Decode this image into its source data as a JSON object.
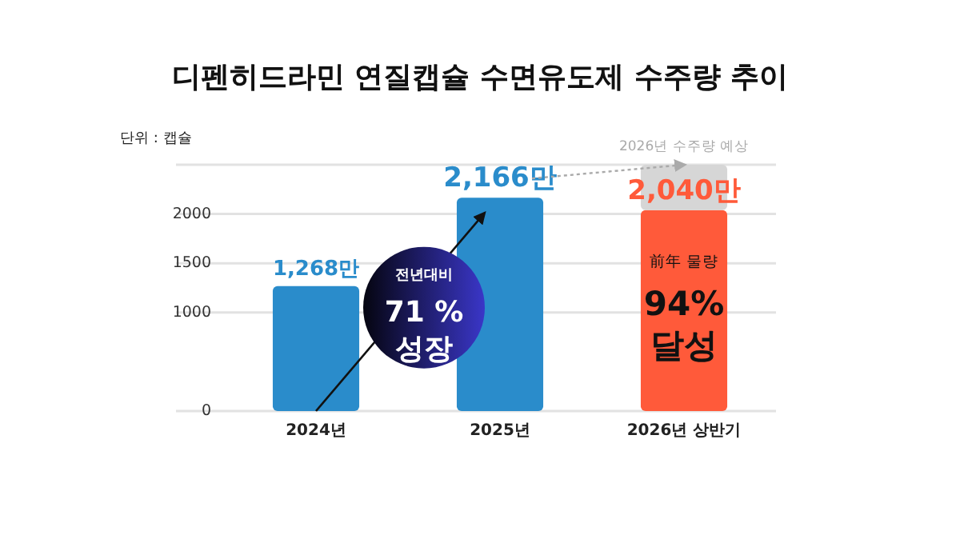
{
  "chart_data": {
    "type": "bar",
    "title": "디펜히드라민 연질캡슐 수면유도제 수주량 추이",
    "categories": [
      "2024년",
      "2025년",
      "2026년 상반기"
    ],
    "stacked": true,
    "series": [
      {
        "values": [
          1268,
          2166,
          2040
        ],
        "colors": [
          "#2a8ccb",
          "#2a8ccb",
          "#ff5a3a"
        ],
        "value_labels": [
          "1,268만",
          "2,166만",
          "2,040만"
        ]
      },
      {
        "values": [
          null,
          null,
          460
        ],
        "color": "#d6d6d6"
      }
    ],
    "ylim": [
      0,
      2500
    ],
    "yticks": [
      0,
      1000,
      1500,
      2000,
      {
        "value": 2500,
        "label": null
      }
    ],
    "grid": "y",
    "annotations": [
      "단위 : 캡슐",
      {
        "text": "2026년 수주량 예상",
        "x": "2026년 상반기",
        "y": 2500
      },
      "전년대비\n71 %\n성장",
      "前年 물량\n94%\n달성"
    ]
  }
}
